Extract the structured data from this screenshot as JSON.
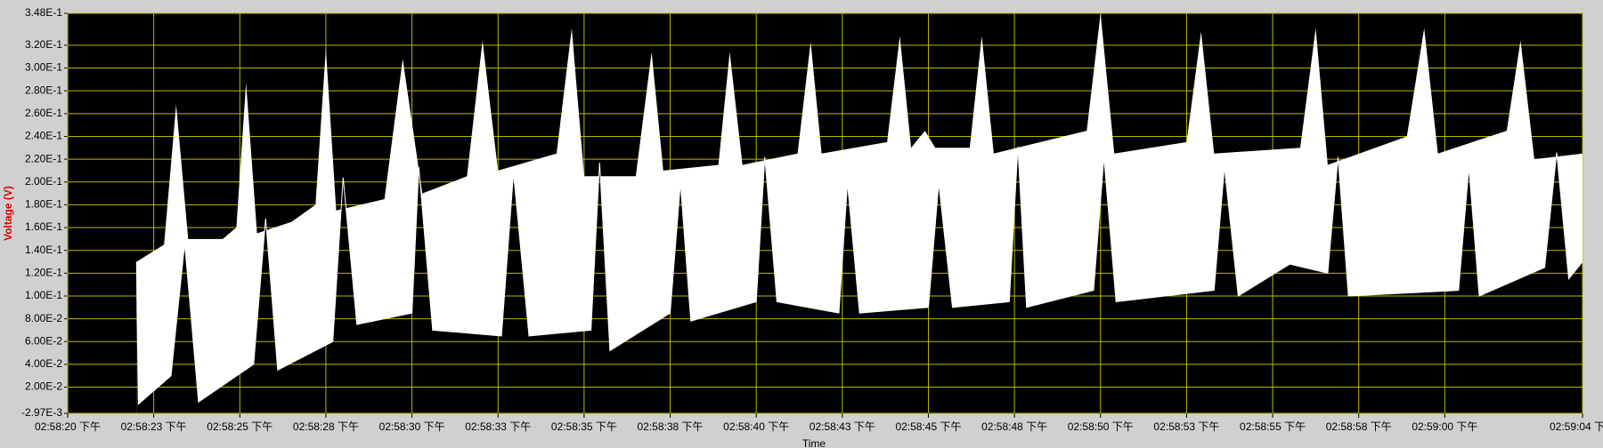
{
  "chart_data": {
    "type": "envelope",
    "x_label": "Time",
    "y_label": "Voltage (V)",
    "xlim": [
      20,
      64
    ],
    "xticks": [
      {
        "value": 20,
        "label": "02:58:20 下午"
      },
      {
        "value": 22.5,
        "label": "02:58:23 下午"
      },
      {
        "value": 25,
        "label": "02:58:25 下午"
      },
      {
        "value": 27.5,
        "label": "02:58:28 下午"
      },
      {
        "value": 30,
        "label": "02:58:30 下午"
      },
      {
        "value": 32.5,
        "label": "02:58:33 下午"
      },
      {
        "value": 35,
        "label": "02:58:35 下午"
      },
      {
        "value": 37.5,
        "label": "02:58:38 下午"
      },
      {
        "value": 40,
        "label": "02:58:40 下午"
      },
      {
        "value": 42.5,
        "label": "02:58:43 下午"
      },
      {
        "value": 45,
        "label": "02:58:45 下午"
      },
      {
        "value": 47.5,
        "label": "02:58:48 下午"
      },
      {
        "value": 50,
        "label": "02:58:50 下午"
      },
      {
        "value": 52.5,
        "label": "02:58:53 下午"
      },
      {
        "value": 55,
        "label": "02:58:55 下午"
      },
      {
        "value": 57.5,
        "label": "02:58:58 下午"
      },
      {
        "value": 60,
        "label": "02:59:00 下午"
      },
      {
        "value": 64,
        "label": "02:59:04 下午"
      }
    ],
    "ylim": [
      -0.00297,
      0.348
    ],
    "yticks": [
      {
        "value": -0.00297,
        "label": "-2.97E-3"
      },
      {
        "value": 0.02,
        "label": "2.00E-2"
      },
      {
        "value": 0.04,
        "label": "4.00E-2"
      },
      {
        "value": 0.06,
        "label": "6.00E-2"
      },
      {
        "value": 0.08,
        "label": "8.00E-2"
      },
      {
        "value": 0.1,
        "label": "1.00E-1"
      },
      {
        "value": 0.12,
        "label": "1.20E-1"
      },
      {
        "value": 0.14,
        "label": "1.40E-1"
      },
      {
        "value": 0.16,
        "label": "1.60E-1"
      },
      {
        "value": 0.18,
        "label": "1.80E-1"
      },
      {
        "value": 0.2,
        "label": "2.00E-1"
      },
      {
        "value": 0.22,
        "label": "2.20E-1"
      },
      {
        "value": 0.24,
        "label": "2.40E-1"
      },
      {
        "value": 0.26,
        "label": "2.60E-1"
      },
      {
        "value": 0.28,
        "label": "2.80E-1"
      },
      {
        "value": 0.3,
        "label": "3.00E-1"
      },
      {
        "value": 0.32,
        "label": "3.20E-1"
      },
      {
        "value": 0.348,
        "label": "3.48E-1"
      }
    ],
    "grid": true,
    "color": "#ffffff",
    "background": "#000000",
    "grid_color": "#b8b800",
    "upper": {
      "x": [
        22.0,
        22.8,
        23.15,
        23.5,
        24.5,
        24.9,
        25.18,
        25.5,
        26.5,
        27.2,
        27.5,
        27.8,
        29.2,
        29.73,
        30.3,
        31.6,
        32.05,
        32.5,
        34.2,
        34.64,
        35.0,
        36.5,
        36.96,
        37.3,
        38.9,
        39.23,
        39.6,
        41.2,
        41.58,
        41.9,
        43.8,
        44.17,
        44.5,
        44.9,
        45.2,
        46.2,
        46.55,
        46.9,
        49.6,
        50.0,
        50.4,
        52.5,
        52.92,
        53.3,
        55.8,
        56.25,
        56.6,
        58.9,
        59.4,
        59.8,
        61.8,
        62.2,
        62.6,
        64.0
      ],
      "values": [
        0.13,
        0.145,
        0.268,
        0.15,
        0.15,
        0.16,
        0.287,
        0.155,
        0.165,
        0.18,
        0.317,
        0.175,
        0.185,
        0.308,
        0.19,
        0.205,
        0.324,
        0.21,
        0.225,
        0.335,
        0.205,
        0.205,
        0.314,
        0.21,
        0.215,
        0.314,
        0.215,
        0.225,
        0.323,
        0.225,
        0.235,
        0.328,
        0.23,
        0.245,
        0.23,
        0.23,
        0.328,
        0.225,
        0.245,
        0.348,
        0.225,
        0.235,
        0.332,
        0.225,
        0.23,
        0.335,
        0.215,
        0.24,
        0.335,
        0.225,
        0.245,
        0.324,
        0.22,
        0.225
      ]
    },
    "lower": {
      "x": [
        22.0,
        22.05,
        23.0,
        23.4,
        23.8,
        25.4,
        25.75,
        26.1,
        27.7,
        28.0,
        28.4,
        30.0,
        30.2,
        30.6,
        32.6,
        32.95,
        33.4,
        35.2,
        35.45,
        35.75,
        37.5,
        37.8,
        38.1,
        40.0,
        40.25,
        40.6,
        42.4,
        42.65,
        43.0,
        45.0,
        45.3,
        45.7,
        47.35,
        47.6,
        47.85,
        49.8,
        50.1,
        50.45,
        53.3,
        53.6,
        54.0,
        55.5,
        56.6,
        56.9,
        57.2,
        60.4,
        60.7,
        61.0,
        62.9,
        63.25,
        63.6,
        64.0
      ],
      "values": [
        0.13,
        0.005,
        0.03,
        0.146,
        0.007,
        0.04,
        0.168,
        0.035,
        0.06,
        0.204,
        0.075,
        0.085,
        0.213,
        0.07,
        0.065,
        0.208,
        0.065,
        0.07,
        0.217,
        0.052,
        0.085,
        0.199,
        0.078,
        0.095,
        0.222,
        0.095,
        0.085,
        0.199,
        0.085,
        0.09,
        0.199,
        0.09,
        0.095,
        0.231,
        0.09,
        0.105,
        0.222,
        0.095,
        0.105,
        0.213,
        0.1,
        0.128,
        0.12,
        0.222,
        0.1,
        0.105,
        0.213,
        0.1,
        0.125,
        0.226,
        0.115,
        0.13
      ]
    }
  }
}
